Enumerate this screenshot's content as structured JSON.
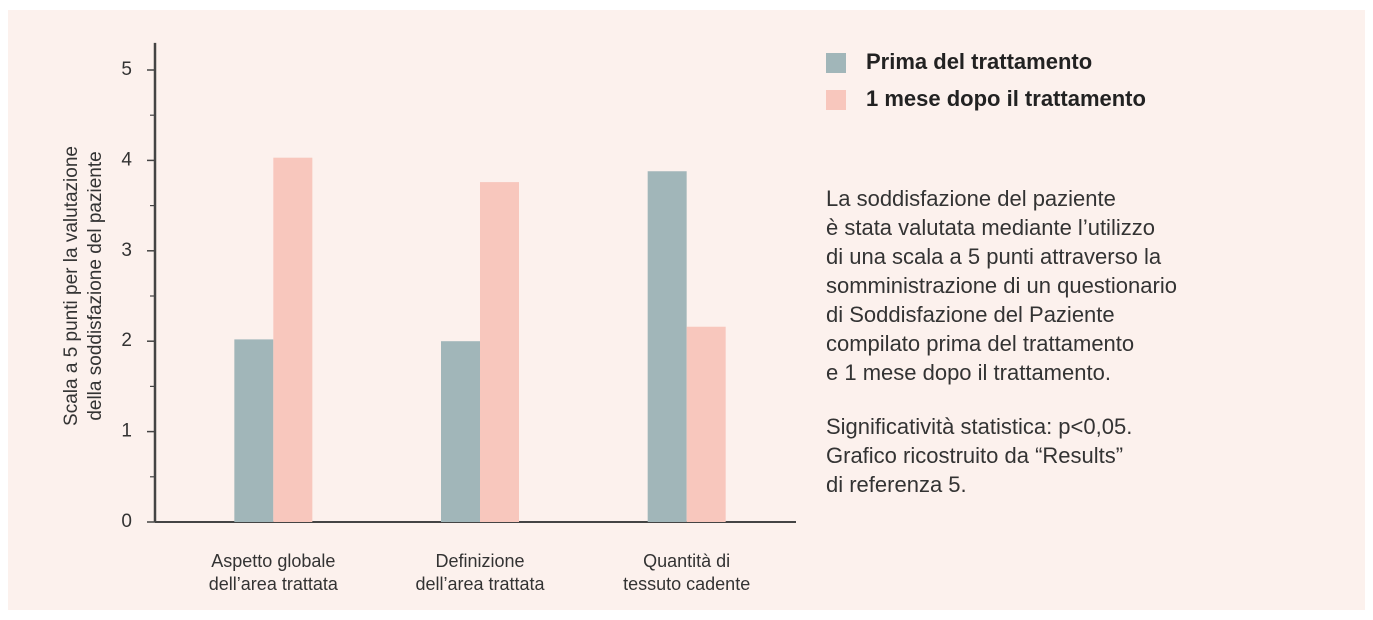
{
  "chart_data": {
    "type": "bar",
    "y_label": [
      "Scala a 5 punti per la valutazione",
      "della soddisfazione del paziente"
    ],
    "categories": [
      [
        "Aspetto globale",
        "dell’area trattata"
      ],
      [
        "Definizione",
        "dell’area trattata"
      ],
      [
        "Quantità di",
        "tessuto cadente"
      ]
    ],
    "series": [
      {
        "name": "Prima del trattamento",
        "color": "#a1b6b9",
        "values": [
          2.02,
          2.0,
          3.88
        ]
      },
      {
        "name": "1 mese dopo il trattamento",
        "color": "#f8c7bd",
        "values": [
          4.03,
          3.76,
          2.16
        ]
      }
    ],
    "ylim": [
      0,
      5.3
    ],
    "yticks": [
      0,
      1,
      2,
      3,
      4,
      5
    ],
    "yminorticks": [
      0.5,
      1.5,
      2.5,
      3.5,
      4.5
    ],
    "grid": false,
    "legend": "right",
    "description": [
      "La soddisfazione del paziente",
      "è stata valutata mediante l’utilizzo",
      "di una scala a 5 punti attraverso la",
      "somministrazione di un questionario",
      "di Soddisfazione del Paziente",
      "compilato prima del trattamento",
      "e 1 mese dopo il trattamento."
    ],
    "note": [
      "Significatività statistica: p<0,05.",
      "Grafico ricostruito da “Results”",
      "di referenza 5."
    ]
  }
}
